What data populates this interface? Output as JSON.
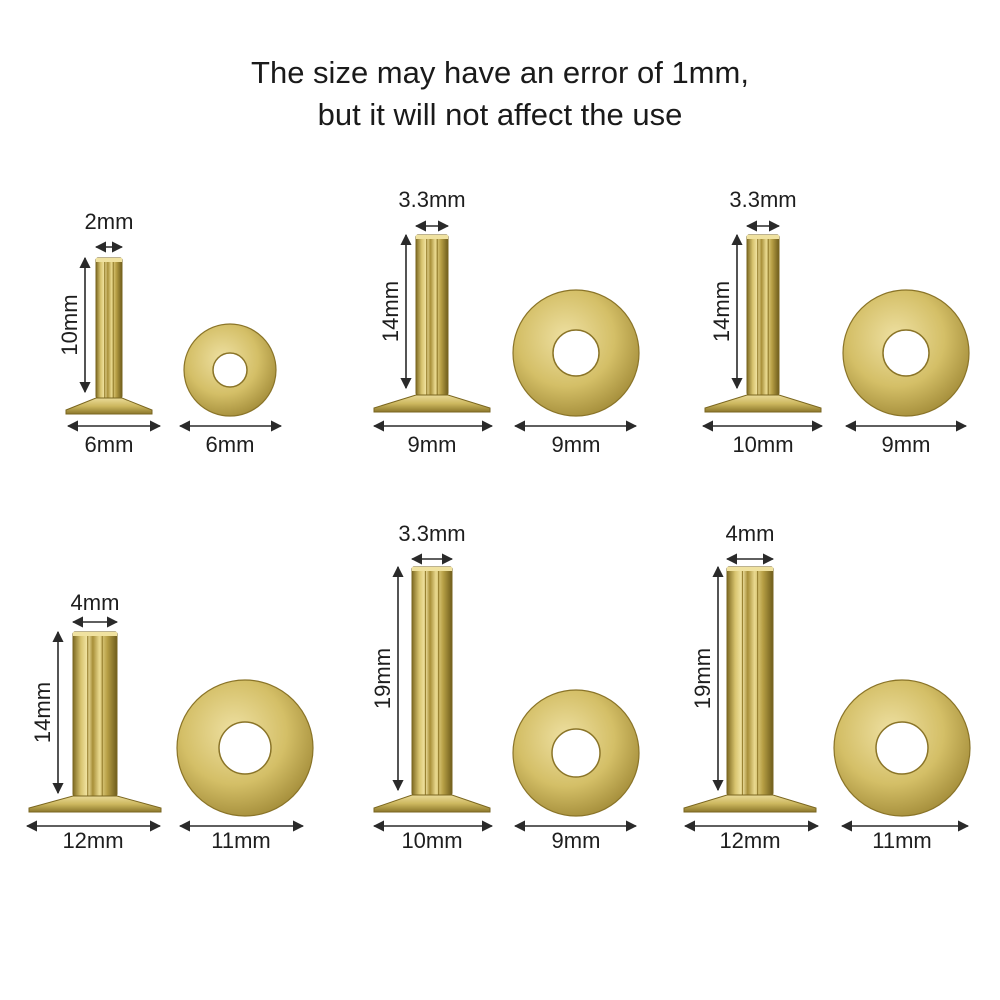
{
  "caption": {
    "line1": "The size may have an error of 1mm,",
    "line2": "but it will not affect the use"
  },
  "colors": {
    "brass_light": "#e6d58f",
    "brass_mid": "#c9b35a",
    "brass_dark": "#8f7a2c",
    "dimension_line": "#2a2a2a"
  },
  "sets": [
    {
      "id": "set-1",
      "shaft_diameter": "2mm",
      "shaft_length": "10mm",
      "head_diameter": "6mm",
      "washer_diameter": "6mm"
    },
    {
      "id": "set-2",
      "shaft_diameter": "3.3mm",
      "shaft_length": "14mm",
      "head_diameter": "9mm",
      "washer_diameter": "9mm"
    },
    {
      "id": "set-3",
      "shaft_diameter": "3.3mm",
      "shaft_length": "14mm",
      "head_diameter": "10mm",
      "washer_diameter": "9mm"
    },
    {
      "id": "set-4",
      "shaft_diameter": "4mm",
      "shaft_length": "14mm",
      "head_diameter": "12mm",
      "washer_diameter": "11mm"
    },
    {
      "id": "set-5",
      "shaft_diameter": "3.3mm",
      "shaft_length": "19mm",
      "head_diameter": "10mm",
      "washer_diameter": "9mm"
    },
    {
      "id": "set-6",
      "shaft_diameter": "4mm",
      "shaft_length": "19mm",
      "head_diameter": "12mm",
      "washer_diameter": "11mm"
    }
  ]
}
